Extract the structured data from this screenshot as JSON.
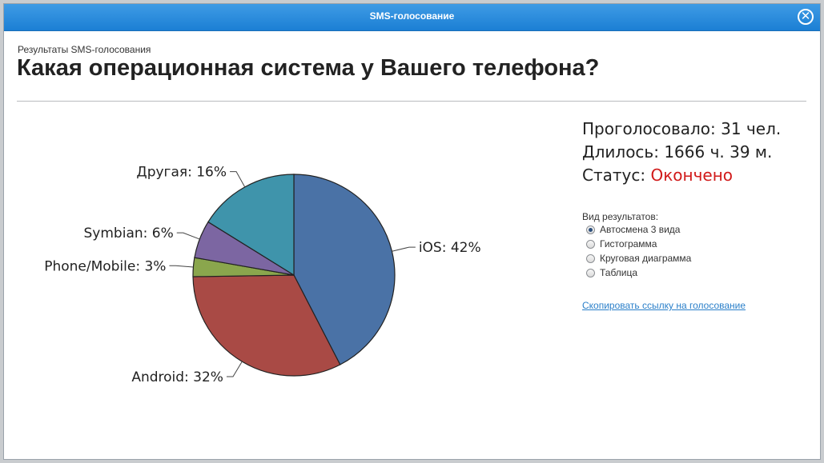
{
  "window": {
    "title": "SMS-голосование",
    "close_glyph": "✕",
    "close_icon": "close-icon"
  },
  "header": {
    "subtitle": "Результаты SMS-голосования",
    "question": "Какая операционная система у Вашего телефона?"
  },
  "stats": {
    "voted_label": "Проголосовало:",
    "voted_value": "31 чел.",
    "duration_label": "Длилось:",
    "duration_value": "1666 ч. 39 м.",
    "status_label": "Статус:",
    "status_value": "Окончено",
    "status_color": "#d11a1a"
  },
  "view_options": {
    "label": "Вид результатов:",
    "selected_index": 0,
    "items": [
      "Автосмена 3 вида",
      "Гистограмма",
      "Круговая диаграмма",
      "Таблица"
    ]
  },
  "copy_link": "Скопировать ссылку на голосование",
  "chart_data": {
    "type": "pie",
    "slices": [
      {
        "name": "iOS",
        "value": 42,
        "label": "iOS: 42%",
        "color": "#4a72a6"
      },
      {
        "name": "Android",
        "value": 32,
        "label": "Android: 32%",
        "color": "#a94a45"
      },
      {
        "name": "Phone/Mobile",
        "value": 3,
        "label": "Phone/Mobile: 3%",
        "color": "#8aa64d"
      },
      {
        "name": "Symbian",
        "value": 6,
        "label": "Symbian: 6%",
        "color": "#7c66a2"
      },
      {
        "name": "Другая",
        "value": 16,
        "label": "Другая: 16%",
        "color": "#3f94ab"
      }
    ],
    "start_angle_deg": 0,
    "direction": "clockwise",
    "legend": "none"
  }
}
